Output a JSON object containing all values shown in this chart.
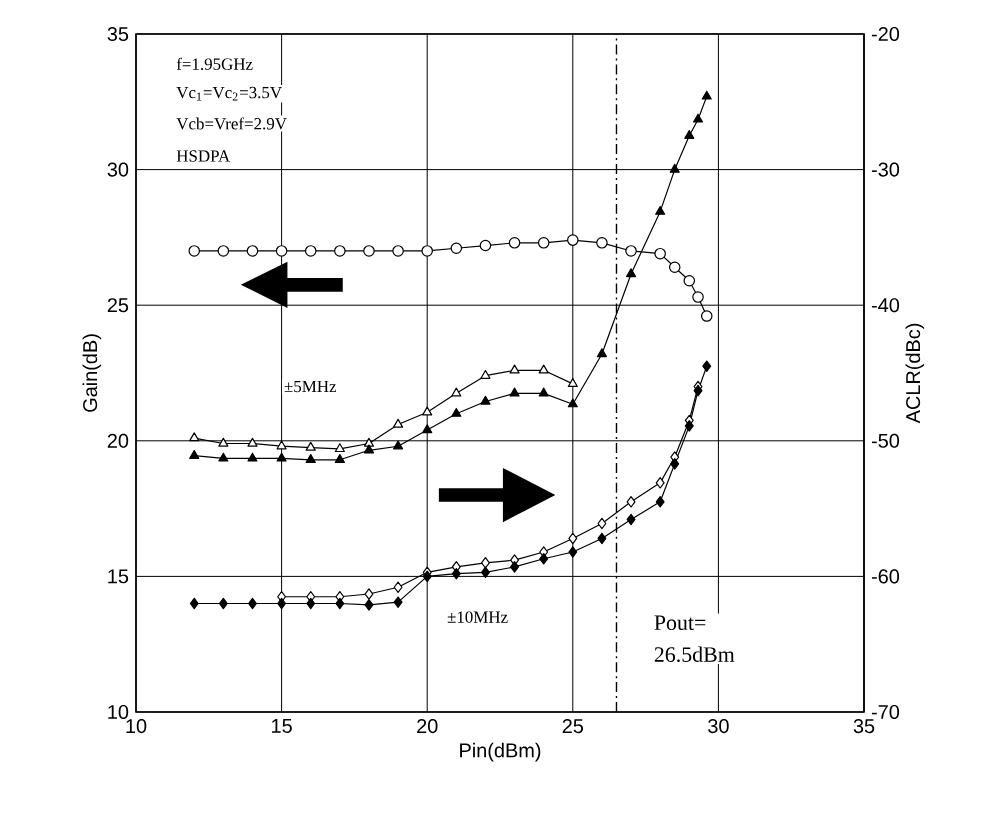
{
  "chart_data": {
    "type": "line",
    "xlabel": "Pin(dBm)",
    "ylabel": "Gain(dB)",
    "y2label": "ACLR(dBc)",
    "xlim": [
      10,
      35
    ],
    "xticks": [
      10,
      15,
      20,
      25,
      30,
      35
    ],
    "ylim": [
      10,
      35
    ],
    "yticks": [
      10,
      15,
      20,
      25,
      30,
      35
    ],
    "y2lim": [
      -70,
      -20
    ],
    "y2ticks": [
      -70,
      -60,
      -50,
      -40,
      -30,
      -20
    ],
    "grid": true,
    "series": [
      {
        "color": "#000000",
        "marker": "circle",
        "x": [
          12,
          13,
          14,
          15,
          16,
          17,
          18,
          19,
          20,
          21,
          22,
          23,
          24,
          25,
          26,
          27,
          28,
          28.5,
          29,
          29.3,
          29.6
        ],
        "values": [
          27.0,
          27.0,
          27.0,
          27.0,
          27.0,
          27.0,
          27.0,
          27.0,
          27.0,
          27.1,
          27.2,
          27.3,
          27.3,
          27.4,
          27.3,
          27.0,
          26.9,
          26.4,
          25.9,
          25.3,
          24.6
        ]
      },
      {
        "color": "#000000",
        "marker": "triangle",
        "axis": "y2",
        "x": [
          12,
          13,
          14,
          15,
          16,
          17,
          18,
          19,
          20,
          21,
          22,
          23,
          24,
          25
        ],
        "values": [
          -49.8,
          -50.2,
          -50.2,
          -50.4,
          -50.5,
          -50.6,
          -50.2,
          -48.8,
          -47.9,
          -46.5,
          -45.2,
          -44.8,
          -44.8,
          -45.8
        ]
      },
      {
        "color": "#000000",
        "marker": "triangle",
        "axis": "y2",
        "x": [
          12,
          13,
          14,
          15,
          16,
          17,
          18,
          19,
          20,
          21,
          22,
          23,
          24,
          25,
          26,
          27,
          28,
          28.5,
          29,
          29.3,
          29.6
        ],
        "values": [
          -51.1,
          -51.3,
          -51.3,
          -51.3,
          -51.4,
          -51.4,
          -50.7,
          -50.4,
          -49.2,
          -48.0,
          -47.1,
          -46.5,
          -46.5,
          -47.3,
          -43.6,
          -37.7,
          -33.1,
          -30.0,
          -27.5,
          -26.3,
          -24.6
        ]
      },
      {
        "color": "#000000",
        "marker": "diamond",
        "axis": "y2",
        "x": [
          15,
          16,
          17,
          18,
          19,
          20,
          21,
          22,
          23,
          24,
          25,
          26,
          27,
          28,
          28.5,
          29,
          29.3
        ],
        "values": [
          -61.5,
          -61.5,
          -61.5,
          -61.3,
          -60.8,
          -59.7,
          -59.3,
          -59.0,
          -58.8,
          -58.2,
          -57.2,
          -56.1,
          -54.5,
          -53.1,
          -51.2,
          -48.5,
          -46.0
        ]
      },
      {
        "color": "#000000",
        "marker": "diamond",
        "axis": "y2",
        "x": [
          12,
          13,
          14,
          15,
          16,
          17,
          18,
          19,
          20,
          21,
          22,
          23,
          24,
          25,
          26,
          27,
          28,
          28.5,
          29,
          29.3,
          29.6
        ],
        "values": [
          -62.0,
          -62.0,
          -62.0,
          -62.0,
          -62.0,
          -62.0,
          -62.1,
          -61.9,
          -60.0,
          -59.8,
          -59.7,
          -59.3,
          -58.7,
          -58.2,
          -57.2,
          -55.8,
          -54.5,
          -51.7,
          -48.9,
          -46.3,
          -44.5
        ]
      }
    ],
    "ref_lines": [
      {
        "axis": "x",
        "value": 26.5,
        "line_style": "dashed"
      }
    ],
    "annotations": [
      "f=1.95GHz",
      "Vc$_{1}$=Vc$_{2}$=3.5V",
      "Vcb=Vref=2.9V",
      "HSDPA",
      "±5MHz",
      "±10MHz",
      "Pout= 26.5dBm"
    ]
  }
}
